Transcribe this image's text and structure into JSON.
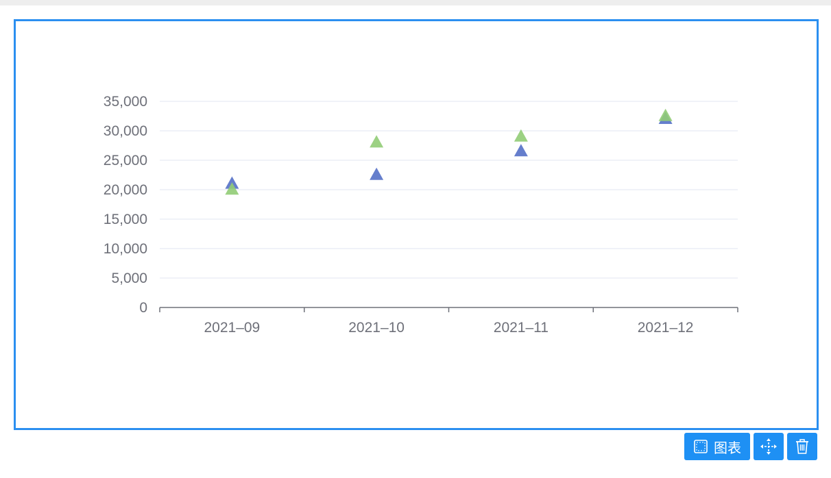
{
  "toolbar": {
    "chart_label": "图表",
    "chart_icon": "frame-icon",
    "move_icon": "move-icon",
    "delete_icon": "trash-icon",
    "button_color": "#1e90f4"
  },
  "frame": {
    "border_color": "#2b8ff0"
  },
  "chart_data": {
    "type": "scatter",
    "marker": "triangle",
    "categories": [
      "2021–09",
      "2021–10",
      "2021–11",
      "2021–12"
    ],
    "yticks": [
      "0",
      "5,000",
      "10,000",
      "15,000",
      "20,000",
      "25,000",
      "30,000",
      "35,000"
    ],
    "ylim": [
      0,
      35000
    ],
    "grid": true,
    "series": [
      {
        "color": "#5470c6",
        "values": [
          21000,
          22500,
          26500,
          32000
        ]
      },
      {
        "color": "#91cc75",
        "values": [
          20000,
          28000,
          29000,
          32500
        ]
      }
    ]
  }
}
